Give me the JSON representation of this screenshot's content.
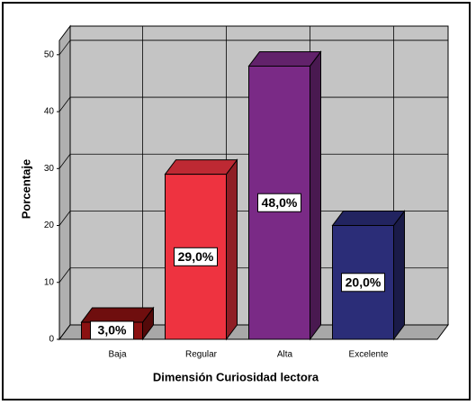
{
  "chart_data": {
    "type": "bar3d",
    "categories": [
      "Baja",
      "Regular",
      "Alta",
      "Excelente"
    ],
    "values": [
      3,
      29,
      48,
      20
    ],
    "value_labels": [
      "3,0%",
      "29,0%",
      "48,0%",
      "20,0%"
    ],
    "colors": [
      "#8b1111",
      "#ee3340",
      "#7a2a86",
      "#2b2d78"
    ],
    "xlabel": "Dimensión Curiosidad lectora",
    "ylabel": "Porcentaje",
    "ylim": [
      0,
      52.5
    ],
    "yticks": [
      0,
      10,
      20,
      30,
      40,
      50
    ],
    "grid": true
  }
}
